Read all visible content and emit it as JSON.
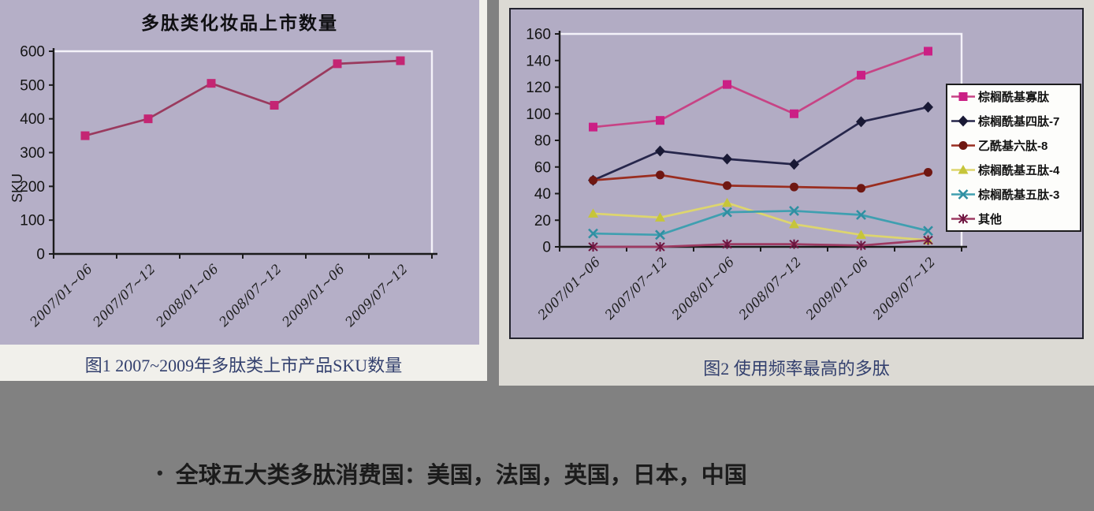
{
  "figure1": {
    "title": "多肽类化妆品上市数量",
    "ylabel": "SKU",
    "caption": "图1 2007~2009年多肽类上市产品SKU数量"
  },
  "figure2": {
    "caption": "图2 使用频率最高的多肽"
  },
  "bullet": {
    "marker": "•",
    "text": "全球五大类多肽消费国：美国，法国，英国，日本，中国"
  },
  "colors": {
    "canvas_gray": "#818181",
    "lavender_left": "#b5afc7",
    "lavender_right": "#b2acc4",
    "caption_ink": "#33406e",
    "axis_black": "#1b1b1b",
    "plot_border_white": "#f4f2f9"
  },
  "chart_data": [
    {
      "type": "line",
      "title": "多肽类化妆品上市数量",
      "xlabel": "",
      "ylabel": "SKU",
      "categories": [
        "2007/01~06",
        "2007/07~12",
        "2008/01~06",
        "2008/07~12",
        "2009/01~06",
        "2009/07~12"
      ],
      "series": [
        {
          "name": "SKU",
          "values": [
            350,
            400,
            505,
            440,
            563,
            572
          ],
          "color": "#9a3a5e",
          "marker": "square",
          "marker_color": "#c42573"
        }
      ],
      "ylim": [
        0,
        600
      ],
      "yticks": [
        0,
        100,
        200,
        300,
        400,
        500,
        600
      ],
      "grid": false,
      "legend": false,
      "caption": "图1 2007~2009年多肽类上市产品SKU数量"
    },
    {
      "type": "line",
      "title": "",
      "xlabel": "",
      "ylabel": "",
      "categories": [
        "2007/01~06",
        "2007/07~12",
        "2008/01~06",
        "2008/07~12",
        "2009/01~06",
        "2009/07~12"
      ],
      "series": [
        {
          "name": "棕榈酰基寡肽",
          "values": [
            90,
            95,
            122,
            100,
            129,
            147
          ],
          "color": "#c74385",
          "marker": "square",
          "marker_color": "#cb1f85"
        },
        {
          "name": "棕榈酰基四肽-7",
          "values": [
            50,
            72,
            66,
            62,
            94,
            105
          ],
          "color": "#26264b",
          "marker": "diamond",
          "marker_color": "#191935"
        },
        {
          "name": "乙酰基六肽-8",
          "values": [
            50,
            54,
            46,
            45,
            44,
            56
          ],
          "color": "#9a2d1f",
          "marker": "circle",
          "marker_color": "#6f1712"
        },
        {
          "name": "棕榈酰基五肽-4",
          "values": [
            25,
            22,
            33,
            17,
            9,
            5
          ],
          "color": "#ddd56e",
          "marker": "triangle",
          "marker_color": "#c6c53a"
        },
        {
          "name": "棕榈酰基五肽-3",
          "values": [
            10,
            9,
            26,
            27,
            24,
            12
          ],
          "color": "#3f9fb0",
          "marker": "x",
          "marker_color": "#2f8fa2"
        },
        {
          "name": "其他",
          "values": [
            0,
            0,
            2,
            2,
            1,
            5
          ],
          "color": "#9e3a62",
          "marker": "asterisk",
          "marker_color": "#6e1540"
        }
      ],
      "ylim": [
        0,
        160
      ],
      "yticks": [
        0,
        20,
        40,
        60,
        80,
        100,
        120,
        140,
        160
      ],
      "grid": false,
      "legend": true,
      "legend_position": "right",
      "caption": "图2 使用频率最高的多肽"
    }
  ]
}
